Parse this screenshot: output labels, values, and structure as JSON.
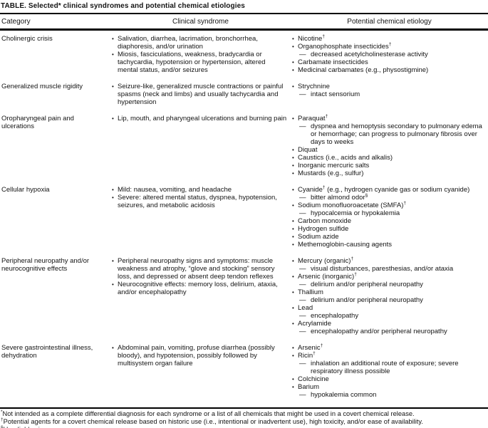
{
  "title": "TABLE. Selected* clinical syndromes and potential chemical etiologies",
  "columns": [
    "Category",
    "Clinical syndrome",
    "Potential chemical etiology"
  ],
  "icons": {
    "bullet": "•",
    "dash": "—"
  },
  "rows": [
    {
      "category": "Cholinergic crisis",
      "syndrome": [
        {
          "text": "Salivation, diarrhea, lacrimation, bronchorrhea, diaphoresis, and/or urination"
        },
        {
          "text": "Miosis, fasciculations, weakness, bradycardia or tachycardia, hypotension or hypertension, altered mental status, and/or seizures"
        }
      ],
      "etiology": [
        {
          "text": "Nicotine^{†}"
        },
        {
          "text": "Organophosphate insecticides^{†}",
          "subs": [
            "decreased acetylcholinesterase activity"
          ]
        },
        {
          "text": "Carbamate insecticides"
        },
        {
          "text": "Medicinal carbamates (e.g., physostigmine)"
        }
      ]
    },
    {
      "category": "Generalized muscle rigidity",
      "syndrome": [
        {
          "text": "Seizure-like, generalized muscle contractions or painful spasms (neck and limbs) and usually tachycardia and hypertension"
        }
      ],
      "etiology": [
        {
          "text": "Strychnine",
          "subs": [
            "intact sensorium"
          ]
        }
      ]
    },
    {
      "category": "Oropharyngeal pain and ulcerations",
      "syndrome": [
        {
          "text": "Lip, mouth, and pharyngeal ulcerations and burning pain"
        }
      ],
      "etiology": [
        {
          "text": "Paraquat^{†}",
          "subs": [
            "dyspnea and hemoptysis secondary to pulmonary edema or hemorrhage; can progress to pulmonary fibrosis over days to weeks"
          ]
        },
        {
          "text": "Diquat"
        },
        {
          "text": "Caustics (i.e., acids and alkalis)"
        },
        {
          "text": "Inorganic mercuric salts"
        },
        {
          "text": "Mustards (e.g., sulfur)"
        }
      ]
    },
    {
      "category": "Cellular hypoxia",
      "syndrome": [
        {
          "text": "Mild: nausea, vomiting, and headache"
        },
        {
          "text": "Severe: altered mental status, dyspnea, hypotension, seizures, and metabolic acidosis"
        }
      ],
      "etiology": [
        {
          "text": "Cyanide^{†} (e.g., hydrogen cyanide gas or sodium cyanide)",
          "subs": [
            "bitter almond odor^{§}"
          ]
        },
        {
          "text": "Sodium monofluoroacetate (SMFA)^{†}",
          "subs": [
            "hypocalcemia or hypokalemia"
          ]
        },
        {
          "text": "Carbon monoxide"
        },
        {
          "text": "Hydrogen sulfide"
        },
        {
          "text": "Sodium azide"
        },
        {
          "text": "Methemoglobin-causing agents"
        }
      ]
    },
    {
      "category": "Peripheral neuropathy and/or neurocognitive effects",
      "syndrome": [
        {
          "text": "Peripheral neuropathy signs and symptoms: muscle weakness and atrophy, “glove and stocking” sensory loss, and depressed or absent deep tendon reflexes"
        },
        {
          "text": "Neurocognitive effects: memory loss, delirium, ataxia, and/or encephalopathy"
        }
      ],
      "etiology": [
        {
          "text": "Mercury (organic)^{†}",
          "subs": [
            "visual disturbances, paresthesias, and/or ataxia"
          ]
        },
        {
          "text": "Arsenic (inorganic)^{†}",
          "subs": [
            "delirium and/or peripheral neuropathy"
          ]
        },
        {
          "text": "Thallium",
          "subs": [
            "delirium and/or peripheral neuropathy"
          ]
        },
        {
          "text": "Lead",
          "subs": [
            "encephalopathy"
          ]
        },
        {
          "text": "Acrylamide",
          "subs": [
            "encephalopathy and/or peripheral neuropathy"
          ]
        }
      ]
    },
    {
      "category": "Severe gastrointestinal illness, dehydration",
      "syndrome": [
        {
          "text": "Abdominal pain, vomiting, profuse diarrhea (possibly bloody), and hypotension, possibly followed by multisystem organ failure"
        }
      ],
      "etiology": [
        {
          "text": "Arsenic^{†}"
        },
        {
          "text": "Ricin^{†}",
          "subs": [
            "inhalation an additional route of exposure; severe respiratory illness possible"
          ]
        },
        {
          "text": "Colchicine"
        },
        {
          "text": "Barium",
          "subs": [
            "hypokalemia common"
          ]
        }
      ]
    }
  ],
  "footnotes": [
    {
      "marker": "*",
      "text": "Not intended as a complete differential diagnosis for each syndrome or a list of all chemicals that might be used in a covert chemical release."
    },
    {
      "marker": "†",
      "text": "Potential agents for a covert chemical release based on historic use (i.e., intentional or inadvertent use), high toxicity, and/or ease of availability."
    },
    {
      "marker": "§",
      "text": "Unreliable sign."
    }
  ]
}
